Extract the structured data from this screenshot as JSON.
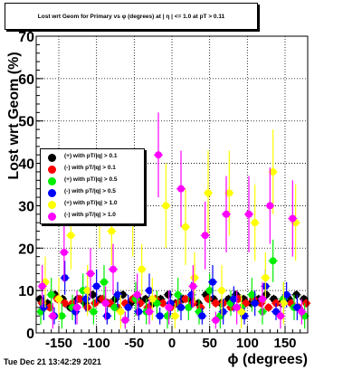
{
  "title": "Lost wrt Geom for Primary vs φ (degrees) at | η | <= 1.0 at pT > 0.11",
  "timestamp": "Tue Dec 21 13:42:29 2021",
  "chart_data": {
    "type": "scatter",
    "xlabel": "ϕ (degrees)",
    "ylabel": "Lost wrt Geom (%)",
    "xlim": [
      -180,
      180
    ],
    "ylim": [
      0,
      70
    ],
    "x_ticks": [
      -150,
      -100,
      -50,
      0,
      50,
      100,
      150
    ],
    "y_ticks": [
      0,
      10,
      20,
      30,
      40,
      50,
      60,
      70
    ],
    "grid": true,
    "legend_position": "left-middle",
    "series": [
      {
        "name": "(+) with pT/|q| > 0.1",
        "color": "#000000",
        "x": [
          -175,
          -165,
          -155,
          -145,
          -135,
          -125,
          -115,
          -105,
          -95,
          -85,
          -75,
          -65,
          -55,
          -45,
          -35,
          -25,
          -15,
          -5,
          5,
          15,
          25,
          35,
          45,
          55,
          65,
          75,
          85,
          95,
          105,
          115,
          125,
          135,
          145,
          155,
          165,
          175
        ],
        "y": [
          8,
          7,
          9,
          8,
          6,
          8,
          7,
          9,
          8,
          7,
          8,
          9,
          7,
          8,
          8,
          7,
          8,
          9,
          7,
          8,
          8,
          7,
          9,
          8,
          7,
          8,
          9,
          8,
          7,
          8,
          9,
          8,
          7,
          8,
          9,
          8
        ],
        "err": [
          1,
          1,
          1,
          1,
          1,
          1,
          1,
          1,
          1,
          1,
          1,
          1,
          1,
          1,
          1,
          1,
          1,
          1,
          1,
          1,
          1,
          1,
          1,
          1,
          1,
          1,
          1,
          1,
          1,
          1,
          1,
          1,
          1,
          1,
          1,
          1
        ]
      },
      {
        "name": "(-) with pT/|q| > 0.1",
        "color": "#ff0000",
        "x": [
          -172,
          -162,
          -152,
          -142,
          -132,
          -122,
          -112,
          -102,
          -92,
          -82,
          -72,
          -62,
          -52,
          -42,
          -32,
          -22,
          -12,
          -2,
          8,
          18,
          28,
          38,
          48,
          58,
          68,
          78,
          88,
          98,
          108,
          118,
          128,
          138,
          148,
          158,
          168,
          178
        ],
        "y": [
          7,
          6,
          8,
          7,
          7,
          8,
          6,
          7,
          8,
          7,
          6,
          7,
          8,
          7,
          6,
          8,
          7,
          6,
          7,
          8,
          7,
          6,
          8,
          7,
          7,
          6,
          8,
          7,
          8,
          7,
          6,
          7,
          8,
          7,
          6,
          7
        ],
        "err": [
          1,
          1,
          1,
          1,
          1,
          1,
          1,
          1,
          1,
          1,
          1,
          1,
          1,
          1,
          1,
          1,
          1,
          1,
          1,
          1,
          1,
          1,
          1,
          1,
          1,
          1,
          1,
          1,
          1,
          1,
          1,
          1,
          1,
          1,
          1,
          1
        ]
      },
      {
        "name": "(+) with pT/|q| > 0.5",
        "color": "#00ee00",
        "x": [
          -174,
          -160,
          -146,
          -132,
          -118,
          -104,
          -90,
          -76,
          -62,
          -48,
          -34,
          -20,
          -6,
          8,
          22,
          36,
          50,
          64,
          78,
          92,
          106,
          120,
          134,
          148,
          162,
          176
        ],
        "y": [
          5,
          9,
          4,
          6,
          10,
          5,
          12,
          6,
          3,
          8,
          5,
          7,
          4,
          9,
          6,
          5,
          10,
          4,
          7,
          6,
          9,
          5,
          17,
          8,
          6,
          4
        ],
        "err": [
          3,
          4,
          3,
          3,
          4,
          3,
          4,
          3,
          2,
          4,
          3,
          3,
          3,
          4,
          3,
          3,
          4,
          3,
          3,
          3,
          4,
          3,
          5,
          4,
          3,
          3
        ]
      },
      {
        "name": "(-) with pT/|q| > 0.5",
        "color": "#0000ff",
        "x": [
          -170,
          -156,
          -142,
          -128,
          -114,
          -100,
          -86,
          -72,
          -58,
          -44,
          -30,
          -16,
          -2,
          12,
          26,
          40,
          54,
          68,
          82,
          96,
          110,
          124,
          138,
          152,
          166
        ],
        "y": [
          6,
          4,
          13,
          5,
          8,
          11,
          4,
          9,
          6,
          5,
          10,
          4,
          7,
          6,
          9,
          4,
          12,
          5,
          8,
          4,
          7,
          11,
          5,
          9,
          6
        ],
        "err": [
          3,
          2,
          4,
          3,
          3,
          4,
          2,
          3,
          3,
          2,
          4,
          2,
          3,
          3,
          3,
          2,
          4,
          3,
          3,
          2,
          3,
          4,
          2,
          3,
          3
        ]
      },
      {
        "name": "(+) with pT/|q| > 1.0",
        "color": "#ffff00",
        "x": [
          -168,
          -150,
          -134,
          -112,
          -96,
          -80,
          -68,
          -52,
          -40,
          -26,
          -8,
          4,
          18,
          30,
          48,
          66,
          76,
          92,
          110,
          124,
          134,
          148,
          164
        ],
        "y": [
          12,
          8,
          23,
          10,
          30,
          24,
          5,
          26,
          15,
          8,
          30,
          4,
          25,
          13,
          33,
          10,
          33,
          5,
          26,
          13,
          38,
          7,
          26
        ],
        "err": [
          6,
          5,
          8,
          6,
          10,
          8,
          4,
          8,
          6,
          5,
          10,
          3,
          9,
          6,
          10,
          6,
          10,
          4,
          9,
          6,
          10,
          5,
          9
        ]
      },
      {
        "name": "(-) with pT/|q| > 1.0",
        "color": "#ff00ff",
        "x": [
          -172,
          -158,
          -143,
          -126,
          -108,
          -88,
          -78,
          -62,
          -46,
          -30,
          -18,
          -4,
          12,
          28,
          44,
          58,
          72,
          86,
          102,
          120,
          130,
          144,
          160,
          172
        ],
        "y": [
          11,
          4,
          19,
          6,
          14,
          7,
          15,
          3,
          9,
          5,
          42,
          6,
          34,
          11,
          23,
          3,
          28,
          6,
          28,
          8,
          30,
          4,
          27,
          5
        ],
        "err": [
          5,
          3,
          7,
          4,
          6,
          4,
          6,
          2,
          5,
          3,
          10,
          4,
          9,
          5,
          8,
          2,
          9,
          4,
          9,
          4,
          9,
          3,
          9,
          3
        ]
      }
    ]
  },
  "legend": {
    "entries": [
      {
        "label": "(+) with pT/|q| > 0.1",
        "color": "#000000"
      },
      {
        "label": "(-) with pT/|q| > 0.1",
        "color": "#ff0000"
      },
      {
        "label": "(+) with pT/|q| > 0.5",
        "color": "#00ee00"
      },
      {
        "label": "(-) with pT/|q| > 0.5",
        "color": "#0000ff"
      },
      {
        "label": "(+) with pT/|q| > 1.0",
        "color": "#ffff00"
      },
      {
        "label": "(-) with pT/|q| > 1.0",
        "color": "#ff00ff"
      }
    ]
  }
}
